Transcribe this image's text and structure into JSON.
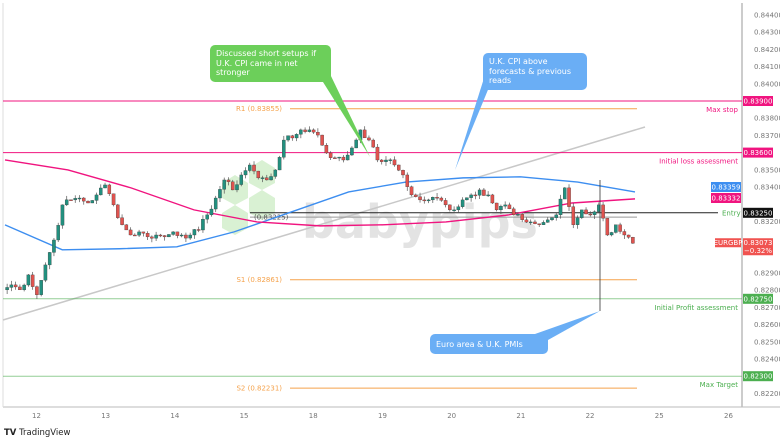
{
  "chart_data": {
    "type": "candlestick",
    "symbol": "EURGBP",
    "last_price": "0.83073",
    "change": "−0.32%",
    "ylim": [
      0.8215,
      0.8447
    ],
    "y_ticks": [
      "0.84400",
      "0.84300",
      "0.84200",
      "0.84100",
      "0.84000",
      "0.83800",
      "0.83700",
      "0.83500",
      "0.83400",
      "0.83200",
      "0.82900",
      "0.82800",
      "0.82700",
      "0.82600",
      "0.82500",
      "0.82400",
      "0.82200"
    ],
    "x_ticks": [
      "12",
      "13",
      "14",
      "15",
      "18",
      "19",
      "20",
      "21",
      "22",
      "25",
      "26"
    ],
    "closes": [
      0.82802,
      0.82831,
      0.82802,
      0.82889,
      0.82773,
      0.82947,
      0.83092,
      0.83296,
      0.83325,
      0.83336,
      0.83307,
      0.83354,
      0.83412,
      0.83296,
      0.8318,
      0.83121,
      0.83139,
      0.8311,
      0.83121,
      0.8311,
      0.83139,
      0.83121,
      0.83121,
      0.8315,
      0.83238,
      0.83336,
      0.83441,
      0.83383,
      0.8347,
      0.83528,
      0.83453,
      0.83441,
      0.83499,
      0.83673,
      0.83685,
      0.83732,
      0.83732,
      0.83702,
      0.83598,
      0.83569,
      0.83557,
      0.83627,
      0.83732,
      0.83673,
      0.83557,
      0.83557,
      0.83528,
      0.8347,
      0.83354,
      0.83325,
      0.83325,
      0.83336,
      0.83296,
      0.83267,
      0.83325,
      0.83354,
      0.83383,
      0.83354,
      0.83267,
      0.83296,
      0.83238,
      0.83209,
      0.83197,
      0.8318,
      0.83209,
      0.83238,
      0.83395,
      0.8318,
      0.83267,
      0.83238,
      0.83296,
      0.83121,
      0.8318,
      0.83121,
      0.83073
    ],
    "ma_blue": [
      0.8318,
      0.83035,
      0.83041,
      0.83052,
      0.83139,
      0.83255,
      0.83371,
      0.83429,
      0.83453,
      0.83459,
      0.83429,
      0.83371
    ],
    "ma_pink": [
      0.83557,
      0.83499,
      0.83395,
      0.83267,
      0.83197,
      0.83174,
      0.8318,
      0.83197,
      0.83238,
      0.83307,
      0.83331
    ],
    "levels": [
      {
        "name": "Max stop",
        "price": 0.839,
        "axis_label": "0.83900",
        "color": "#f0147f"
      },
      {
        "name": "Initial loss assessment",
        "price": 0.836,
        "axis_label": "0.83600",
        "color": "#f0147f"
      },
      {
        "name": "Entry",
        "price": 0.8325,
        "axis_label": "0.83250",
        "color": "#111111"
      },
      {
        "name": "Initial Profit assessment",
        "price": 0.8275,
        "axis_label": "0.82750",
        "color": "#4caf50"
      },
      {
        "name": "Max Target",
        "price": 0.823,
        "axis_label": "0.82300",
        "color": "#4caf50"
      }
    ],
    "pivots": [
      {
        "label": "R1 (0.83855)",
        "price": 0.83855
      },
      {
        "label": "(0.83225)",
        "price": 0.83225
      },
      {
        "label": "S1 (0.82861)",
        "price": 0.82861
      },
      {
        "label": "S2 (0.82231)",
        "price": 0.82231
      }
    ],
    "ma_labels": {
      "blue": "0.83359",
      "pink": "0.83332"
    },
    "colors": {
      "up": "#22907f",
      "down": "#e0534f",
      "blue": "#3d8ef0",
      "pink": "#f0147f",
      "pivot": "#f5a24b",
      "trend": "#c8c8c8"
    }
  },
  "callouts": {
    "green": "Discussed short setups if U.K. CPI came in net stronger",
    "blue_top": "U.K. CPI above forecasts & previous reads",
    "blue_bottom": "Euro area & U.K. PMIs"
  },
  "watermark": "babypips",
  "footer": {
    "brand": "TradingView"
  }
}
